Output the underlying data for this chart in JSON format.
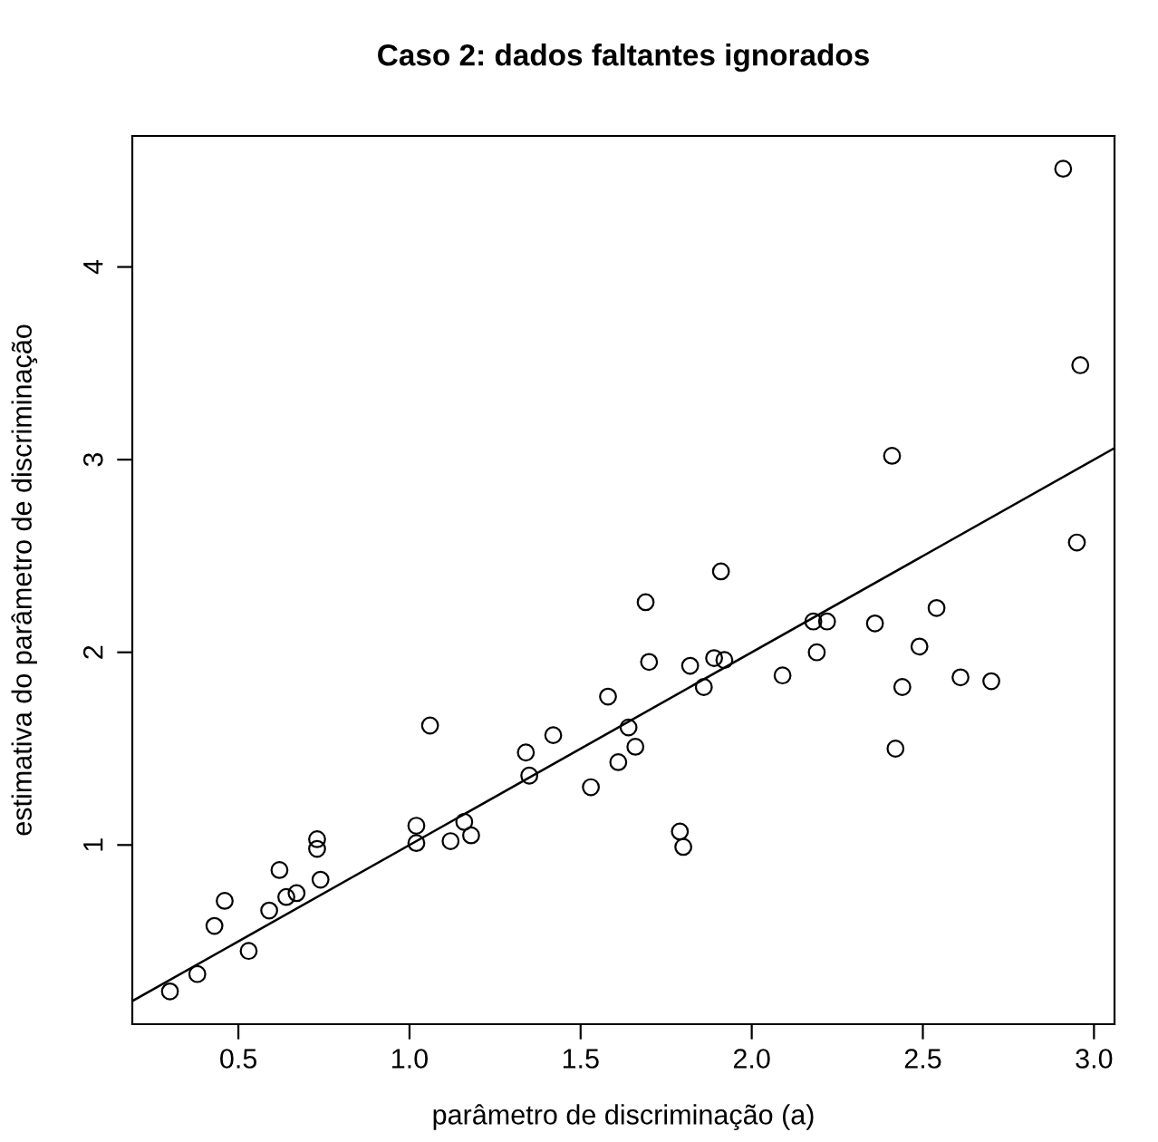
{
  "chart_data": {
    "type": "scatter",
    "title": "Caso 2: dados faltantes ignorados",
    "xlabel": "parâmetro de discriminação (a)",
    "ylabel": "estimativa do parâmetro de discriminação",
    "marker": "circle",
    "grid": false,
    "legend": false,
    "xlim": [
      0.19,
      3.06
    ],
    "ylim": [
      0.07,
      4.68
    ],
    "xticks": [
      {
        "value": 0.5,
        "label": "0.5"
      },
      {
        "value": 1.0,
        "label": "1.0"
      },
      {
        "value": 1.5,
        "label": "1.5"
      },
      {
        "value": 2.0,
        "label": "2.0"
      },
      {
        "value": 2.5,
        "label": "2.5"
      },
      {
        "value": 3.0,
        "label": "3.0"
      }
    ],
    "yticks": [
      1,
      2,
      3,
      4
    ],
    "series": [
      {
        "color": "#000000",
        "x": [
          0.3,
          0.38,
          0.43,
          0.46,
          0.53,
          0.59,
          0.62,
          0.64,
          0.67,
          0.73,
          0.73,
          0.74,
          1.02,
          1.02,
          1.06,
          1.12,
          1.16,
          1.18,
          1.34,
          1.35,
          1.42,
          1.53,
          1.58,
          1.61,
          1.64,
          1.66,
          1.69,
          1.7,
          1.79,
          1.8,
          1.82,
          1.86,
          1.89,
          1.91,
          1.92,
          2.09,
          2.18,
          2.19,
          2.22,
          2.36,
          2.41,
          2.42,
          2.44,
          2.49,
          2.54,
          2.61,
          2.7,
          2.91,
          2.95,
          2.96
        ],
        "values": [
          0.24,
          0.33,
          0.58,
          0.71,
          0.45,
          0.66,
          0.87,
          0.73,
          0.75,
          1.03,
          0.98,
          0.82,
          1.1,
          1.01,
          1.62,
          1.02,
          1.12,
          1.05,
          1.48,
          1.36,
          1.57,
          1.3,
          1.77,
          1.43,
          1.61,
          1.51,
          2.26,
          1.95,
          1.07,
          0.99,
          1.93,
          1.82,
          1.97,
          2.42,
          1.96,
          1.88,
          2.16,
          2.0,
          2.16,
          2.15,
          3.02,
          1.5,
          1.82,
          2.03,
          2.23,
          1.87,
          1.85,
          4.51,
          2.57,
          3.49
        ]
      },
      {
        "type": "line",
        "color": "#000000",
        "marker": "none",
        "line_style": "solid",
        "x": [
          0.19,
          3.06
        ],
        "values": [
          0.19,
          3.06
        ]
      }
    ]
  }
}
